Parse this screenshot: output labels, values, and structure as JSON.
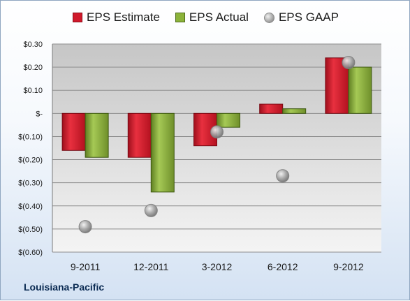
{
  "company": "Louisiana-Pacific",
  "legend": {
    "estimate": "EPS Estimate",
    "actual": "EPS Actual",
    "gaap": "EPS GAAP"
  },
  "colors": {
    "estimate": "#d0192b",
    "actual": "#8cb33a",
    "gaap": "#9c9c9c",
    "plot_background_top": "#c8c8c8",
    "plot_background_bottom": "#f4f4f4"
  },
  "chart_data": {
    "type": "bar",
    "categories": [
      "9-2011",
      "12-2011",
      "3-2012",
      "6-2012",
      "9-2012"
    ],
    "series": [
      {
        "name": "EPS Estimate",
        "values": [
          -0.16,
          -0.19,
          -0.14,
          0.04,
          0.24
        ]
      },
      {
        "name": "EPS Actual",
        "values": [
          -0.19,
          -0.34,
          -0.06,
          0.02,
          0.2
        ]
      },
      {
        "name": "EPS GAAP",
        "type": "scatter",
        "values": [
          -0.49,
          -0.42,
          -0.08,
          -0.27,
          0.22
        ]
      }
    ],
    "ylim": [
      -0.6,
      0.3
    ],
    "ytick_labels": [
      "$0.30",
      "$0.20",
      "$0.10",
      "$-",
      "$(0.10)",
      "$(0.20)",
      "$(0.30)",
      "$(0.40)",
      "$(0.50)",
      "$(0.60)"
    ],
    "grid": true,
    "legend_position": "top"
  }
}
